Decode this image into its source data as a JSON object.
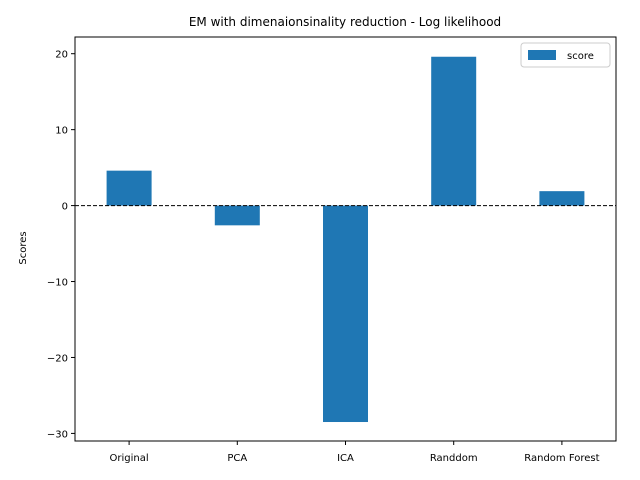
{
  "chart_data": {
    "type": "bar",
    "title": "EM with dimenaionsinality reduction - Log likelihood",
    "xlabel": "",
    "ylabel": "Scores",
    "categories": [
      "Original",
      "PCA",
      "ICA",
      "Randdom",
      "Random Forest"
    ],
    "series": [
      {
        "name": "score",
        "values": [
          4.6,
          -2.6,
          -28.5,
          19.6,
          1.9
        ],
        "color": "#1f77b4"
      }
    ],
    "ylim": [
      -31.0,
      22.2
    ],
    "yticks": [
      -30,
      -20,
      -10,
      0,
      10,
      20
    ],
    "ytick_labels": [
      "−30",
      "−20",
      "−10",
      "0",
      "10",
      "20"
    ],
    "reference_line": {
      "y": 0,
      "style": "dashed",
      "color": "#000000"
    },
    "legend": {
      "position": "top-right"
    },
    "grid": false
  }
}
